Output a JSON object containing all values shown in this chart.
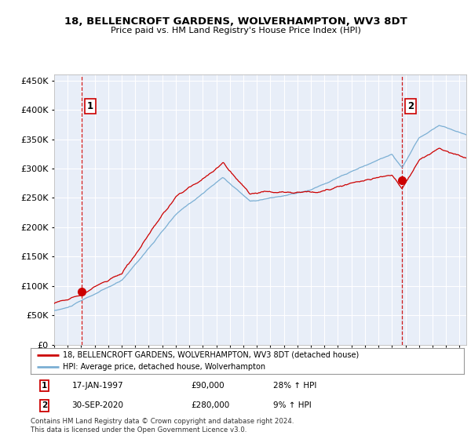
{
  "title": "18, BELLENCROFT GARDENS, WOLVERHAMPTON, WV3 8DT",
  "subtitle": "Price paid vs. HM Land Registry's House Price Index (HPI)",
  "legend_line1": "18, BELLENCROFT GARDENS, WOLVERHAMPTON, WV3 8DT (detached house)",
  "legend_line2": "HPI: Average price, detached house, Wolverhampton",
  "annotation1_date": "17-JAN-1997",
  "annotation1_price": "£90,000",
  "annotation1_hpi": "28% ↑ HPI",
  "annotation1_year": 1997.05,
  "annotation1_value": 90000,
  "annotation2_date": "30-SEP-2020",
  "annotation2_price": "£280,000",
  "annotation2_hpi": "9% ↑ HPI",
  "annotation2_year": 2020.75,
  "annotation2_value": 280000,
  "hpi_color": "#7bafd4",
  "price_color": "#cc0000",
  "plot_bg_color": "#e8eef8",
  "footer_text": "Contains HM Land Registry data © Crown copyright and database right 2024.\nThis data is licensed under the Open Government Licence v3.0.",
  "ylim": [
    0,
    460000
  ],
  "xlim_start": 1995.0,
  "xlim_end": 2025.5
}
